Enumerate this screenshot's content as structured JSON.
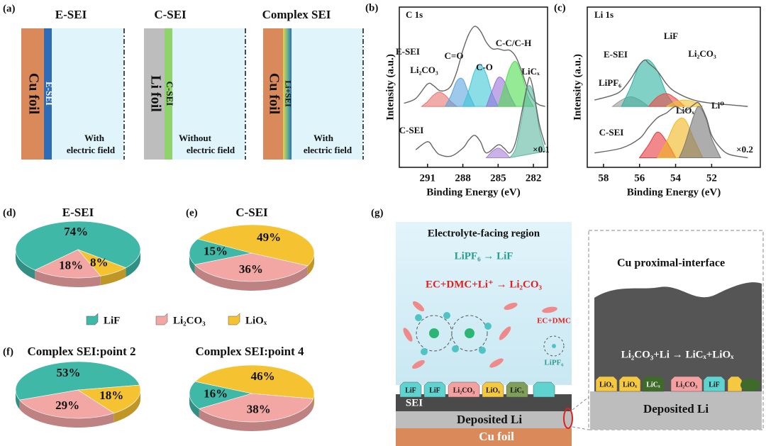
{
  "diagram_a": {
    "label": "(a)",
    "columns": [
      {
        "title": "E-SEI",
        "substrate": "Cu foil",
        "layer": "E-SEI",
        "note": [
          "With",
          "electric field"
        ]
      },
      {
        "title": "C-SEI",
        "substrate": "Li foil",
        "layer": "C-SEI",
        "note": [
          "Without",
          "electric field"
        ]
      },
      {
        "title": "Complex SEI",
        "substrate": "Cu foil",
        "layer": "Li+SEI",
        "note": [
          "With",
          "electric field"
        ]
      }
    ]
  },
  "chart_data": [
    {
      "type": "spectrum",
      "label": "(b)",
      "title": "C 1s",
      "xlabel": "Binding Energy (eV)",
      "ylabel": "Intensity (a.u.)",
      "xlim": [
        293.4,
        280.8
      ],
      "xticks": [
        291,
        288,
        285,
        282
      ],
      "ylim": [
        0,
        100
      ],
      "spectra": [
        {
          "name": "E-SEI",
          "envelope": {
            "x": [
              293,
              292,
              291,
              290.5,
              290,
              289.5,
              289,
              288.5,
              288,
              287.5,
              287,
              286.5,
              286,
              285.5,
              285,
              284.5,
              284,
              283.5,
              283,
              282.5,
              282,
              281.5,
              281
            ],
            "values": [
              40,
              43,
              52,
              51,
              48,
              48,
              51,
              60,
              73,
              83,
              88,
              85,
              78,
              74,
              74,
              73,
              73,
              69,
              60,
              49,
              42,
              39,
              38
            ]
          },
          "components": [
            {
              "name": "Li₂CO₃",
              "color": "#e8736f",
              "x": [
                291.5,
                291,
                290.5,
                290,
                289.5,
                289,
                288.5
              ],
              "values": [
                38,
                41,
                45,
                47,
                45,
                41,
                38
              ]
            },
            {
              "name": "C=O",
              "color": "#5aa5e0",
              "x": [
                289.5,
                289,
                288.5,
                288,
                287.5,
                287
              ],
              "values": [
                38,
                45,
                54,
                55,
                46,
                38
              ]
            },
            {
              "name": "C-O",
              "color": "#3ec6d6",
              "x": [
                288,
                287.5,
                287,
                286.5,
                286,
                285.5,
                285
              ],
              "values": [
                38,
                48,
                60,
                64,
                58,
                46,
                38
              ]
            },
            {
              "name": "C-C/C-H",
              "color": "#9a6fd8",
              "x": [
                286,
                285.5,
                285,
                284.5,
                284,
                283.5
              ],
              "values": [
                38,
                48,
                56,
                54,
                45,
                38
              ]
            },
            {
              "name": "LiCₓ",
              "color": "#4fdc4f",
              "x": [
                285,
                284.5,
                284,
                283.5,
                283,
                282.5,
                282
              ],
              "values": [
                38,
                50,
                62,
                66,
                58,
                45,
                38
              ]
            }
          ]
        },
        {
          "name": "C-SEI",
          "scale_label": "×0.1",
          "envelope": {
            "x": [
              292,
              291,
              290.5,
              290,
              289,
              288,
              287.5,
              287,
              286.5,
              286,
              285,
              284.5,
              284,
              283.5,
              283,
              282.5,
              282.3,
              282,
              281.5,
              281
            ],
            "values": [
              11,
              16,
              12,
              8,
              7,
              12,
              17,
              20,
              16,
              9,
              14,
              12,
              9,
              16,
              34,
              52,
              56,
              48,
              27,
              14
            ]
          },
          "components": [
            {
              "color": "#a77fd6",
              "x": [
                286,
                285.5,
                285,
                284.5,
                284
              ],
              "values": [
                6,
                10,
                12,
                10,
                6
              ]
            },
            {
              "color": "#5cb8a0",
              "x": [
                284,
                283.5,
                283,
                282.5,
                282,
                281.5,
                281
              ],
              "values": [
                6,
                12,
                30,
                50,
                46,
                24,
                10
              ]
            }
          ]
        }
      ]
    },
    {
      "type": "spectrum",
      "label": "(c)",
      "title": "Li 1s",
      "xlabel": "Binding Energy (eV)",
      "ylabel": "Intensity (a.u.)",
      "xlim": [
        58.9,
        49.3
      ],
      "xticks": [
        58,
        56,
        54,
        52
      ],
      "ylim": [
        0,
        100
      ],
      "spectra": [
        {
          "name": "E-SEI",
          "envelope": {
            "x": [
              58.5,
              57.5,
              57,
              56.5,
              56,
              55.7,
              55.5,
              55,
              54.5,
              54,
              53,
              52,
              51,
              50
            ],
            "values": [
              42,
              45,
              48,
              55,
              64,
              67,
              65,
              60,
              52,
              47,
              42,
              40,
              39,
              38
            ]
          },
          "components": [
            {
              "name": "LiPF₆",
              "color": "#9a9a9a",
              "x": [
                57.5,
                57,
                56.5,
                56,
                55.5
              ],
              "values": [
                38,
                42,
                44,
                42,
                38
              ]
            },
            {
              "name": "LiF",
              "color": "#2fb3a0",
              "x": [
                57,
                56.5,
                56,
                55.5,
                55,
                54.5,
                54
              ],
              "values": [
                38,
                50,
                64,
                67,
                60,
                46,
                38
              ]
            },
            {
              "name": "Li₂CO₃",
              "color": "#ee4a4a",
              "x": [
                55.5,
                55,
                54.5,
                54,
                53.5
              ],
              "values": [
                38,
                44,
                46,
                43,
                38
              ]
            },
            {
              "color": "#f2c12e",
              "x": [
                54.5,
                54,
                53.5,
                53,
                52.5
              ],
              "values": [
                38,
                41,
                42,
                41,
                38
              ]
            }
          ]
        },
        {
          "name": "C-SEI",
          "scale_label": "×0.2",
          "envelope": {
            "x": [
              58.5,
              57,
              56,
              55.5,
              55,
              54.5,
              54,
              53.5,
              53,
              52.7,
              52.3,
              52,
              51.5,
              51,
              50
            ],
            "values": [
              9,
              12,
              18,
              25,
              31,
              34,
              38,
              35,
              39,
              40,
              31,
              20,
              12,
              8,
              6
            ]
          },
          "components": [
            {
              "color": "#e8383f",
              "x": [
                56,
                55.5,
                55,
                54.5,
                54
              ],
              "values": [
                6,
                14,
                22,
                16,
                6
              ]
            },
            {
              "name": "LiOₓ",
              "color": "#f2b51d",
              "x": [
                55,
                54.5,
                54,
                53.5,
                53,
                52.5
              ],
              "values": [
                6,
                16,
                28,
                30,
                18,
                6
              ]
            },
            {
              "name": "Li⁰",
              "color": "#777777",
              "x": [
                53.8,
                53.5,
                53,
                52.7,
                52.3,
                52,
                51.5
              ],
              "values": [
                6,
                14,
                32,
                38,
                30,
                18,
                6
              ]
            }
          ]
        }
      ]
    },
    {
      "type": "pie",
      "label": "(d)",
      "title": "E-SEI",
      "categories": [
        "LiF",
        "Li₂CO₃",
        "LiOₓ"
      ],
      "values": [
        74,
        18,
        8
      ],
      "value_labels": [
        "74%",
        "18%",
        "8%"
      ],
      "colors": [
        "#3fb8a8",
        "#f2a7a5",
        "#f5c232"
      ]
    },
    {
      "type": "pie",
      "label": "(e)",
      "title": "C-SEI",
      "categories": [
        "LiF",
        "Li₂CO₃",
        "LiOₓ"
      ],
      "values": [
        15,
        36,
        49
      ],
      "value_labels": [
        "15%",
        "36%",
        "49%"
      ],
      "colors": [
        "#3fb8a8",
        "#f2a7a5",
        "#f5c232"
      ]
    },
    {
      "type": "pie",
      "label": "(f)",
      "title": "Complex SEI:point 2",
      "categories": [
        "LiF",
        "Li₂CO₃",
        "LiOₓ"
      ],
      "values": [
        53,
        29,
        18
      ],
      "value_labels": [
        "53%",
        "29%",
        "18%"
      ],
      "colors": [
        "#3fb8a8",
        "#f2a7a5",
        "#f5c232"
      ]
    },
    {
      "type": "pie",
      "title": "Complex SEI:point 4",
      "categories": [
        "LiF",
        "Li₂CO₃",
        "LiOₓ"
      ],
      "values": [
        16,
        38,
        46
      ],
      "value_labels": [
        "16%",
        "38%",
        "46%"
      ],
      "colors": [
        "#3fb8a8",
        "#f2a7a5",
        "#f5c232"
      ]
    }
  ],
  "diagram_g": {
    "label": "(g)",
    "title": "Electrolyte-facing region",
    "reaction_1": "LiPF₆ → LiF",
    "reaction_2": "EC+DMC+Li⁺ → Li₂CO₃",
    "molecule_labels": [
      "EC+DMC",
      "LiPF₆"
    ],
    "particles": [
      "LiF",
      "LiF",
      "Li₂CO₃",
      "LiOₓ",
      "LiCₓ"
    ],
    "layers": [
      "SEI",
      "Deposited Li",
      "Cu foil"
    ],
    "inset": {
      "title": "Cu proximal-interface",
      "reaction": "Li₂CO₃+Li → LiCₓ+LiOₓ",
      "particles": [
        "LiOₓ",
        "LiOₓ",
        "LiCₓ",
        "Li₂CO₃",
        "LiF"
      ],
      "layer": "Deposited Li"
    }
  }
}
